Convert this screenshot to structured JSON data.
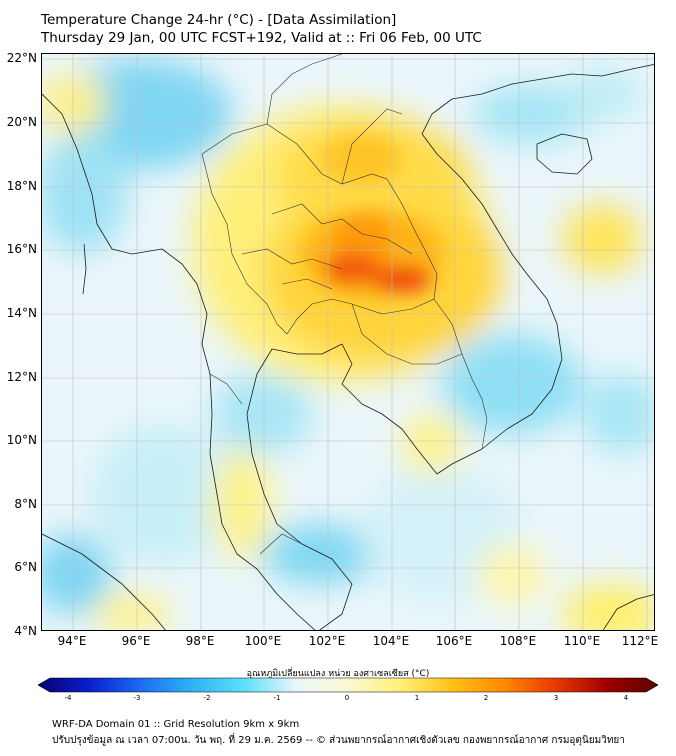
{
  "title": {
    "line1": "Temperature Change 24-hr (°C) - [Data Assimilation]",
    "line2": "Thursday 29 Jan, 00 UTC FCST+192, Valid at :: Fri 06 Feb, 00 UTC"
  },
  "map": {
    "lat_labels": [
      "22°N",
      "20°N",
      "18°N",
      "16°N",
      "14°N",
      "12°N",
      "10°N",
      "8°N",
      "6°N",
      "4°N"
    ],
    "lon_labels": [
      "94°E",
      "96°E",
      "98°E",
      "100°E",
      "102°E",
      "104°E",
      "106°E",
      "108°E",
      "110°E",
      "112°E"
    ]
  },
  "colorbar": {
    "title": "อุณหภูมิเปลี่ยนแปลง หน่วย องศาเซลเซียส (°C)",
    "ticks": [
      "-4",
      "-3",
      "-2",
      "-1",
      "0",
      "1",
      "2",
      "3",
      "4"
    ],
    "min": -4,
    "max": 4,
    "colors": [
      "#08006b",
      "#0a1fd0",
      "#1e6cf0",
      "#2fb4f5",
      "#5fe0f8",
      "#e9f7fb",
      "#fbf8d0",
      "#fff27a",
      "#ffc21a",
      "#ff8a00",
      "#e83a00",
      "#a00000",
      "#5a0000"
    ]
  },
  "footer": {
    "line1": "WRF-DA Domain 01 :: Grid Resolution 9km x 9km",
    "line2": "ปรับปรุงข้อมูล ณ เวลา 07:00น. วัน พฤ. ที่ 29 ม.ค. 2569 -- © ส่วนพยากรณ์อากาศเชิงตัวเลข กองพยากรณ์อากาศ กรมอุตุนิยมวิทยา"
  }
}
